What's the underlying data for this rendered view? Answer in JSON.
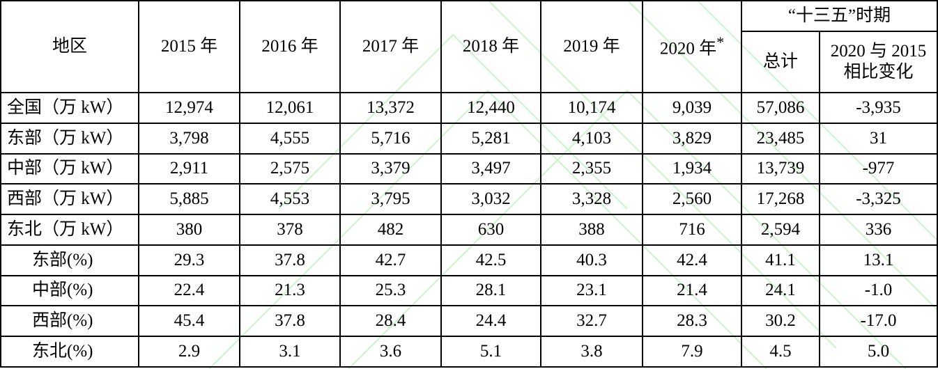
{
  "header": {
    "region": "地区",
    "years": [
      "2015 年",
      "2016 年",
      "2017 年",
      "2018 年",
      "2019 年"
    ],
    "year2020": "2020 年",
    "year2020_mark": "*",
    "period": "“十三五”时期",
    "total": "总计",
    "change_lines": [
      "2020 与 2015",
      "相比变化"
    ]
  },
  "rows": [
    {
      "label": "全国（万 kW）",
      "cells": [
        "12,974",
        "12,061",
        "13,372",
        "12,440",
        "10,174",
        "9,039",
        "57,086",
        "-3,935"
      ]
    },
    {
      "label": "东部（万 kW）",
      "cells": [
        "3,798",
        "4,555",
        "5,716",
        "5,281",
        "4,103",
        "3,829",
        "23,485",
        "31"
      ]
    },
    {
      "label": "中部（万 kW）",
      "cells": [
        "2,911",
        "2,575",
        "3,379",
        "3,497",
        "2,355",
        "1,934",
        "13,739",
        "-977"
      ]
    },
    {
      "label": "西部（万 kW）",
      "cells": [
        "5,885",
        "4,553",
        "3,795",
        "3,032",
        "3,328",
        "2,560",
        "17,268",
        "-3,325"
      ]
    },
    {
      "label": "东北（万 kW）",
      "cells": [
        "380",
        "378",
        "482",
        "630",
        "388",
        "716",
        "2,594",
        "336"
      ]
    },
    {
      "label": "东部(%)",
      "cells": [
        "29.3",
        "37.8",
        "42.7",
        "42.5",
        "40.3",
        "42.4",
        "41.1",
        "13.1"
      ]
    },
    {
      "label": "中部(%)",
      "cells": [
        "22.4",
        "21.3",
        "25.3",
        "28.1",
        "23.1",
        "21.4",
        "24.1",
        "-1.0"
      ]
    },
    {
      "label": "西部(%)",
      "cells": [
        "45.4",
        "37.8",
        "28.4",
        "24.4",
        "32.7",
        "28.3",
        "30.2",
        "-17.0"
      ]
    },
    {
      "label": "东北(%)",
      "cells": [
        "2.9",
        "3.1",
        "3.6",
        "5.1",
        "3.8",
        "7.9",
        "4.5",
        "5.0"
      ]
    }
  ]
}
